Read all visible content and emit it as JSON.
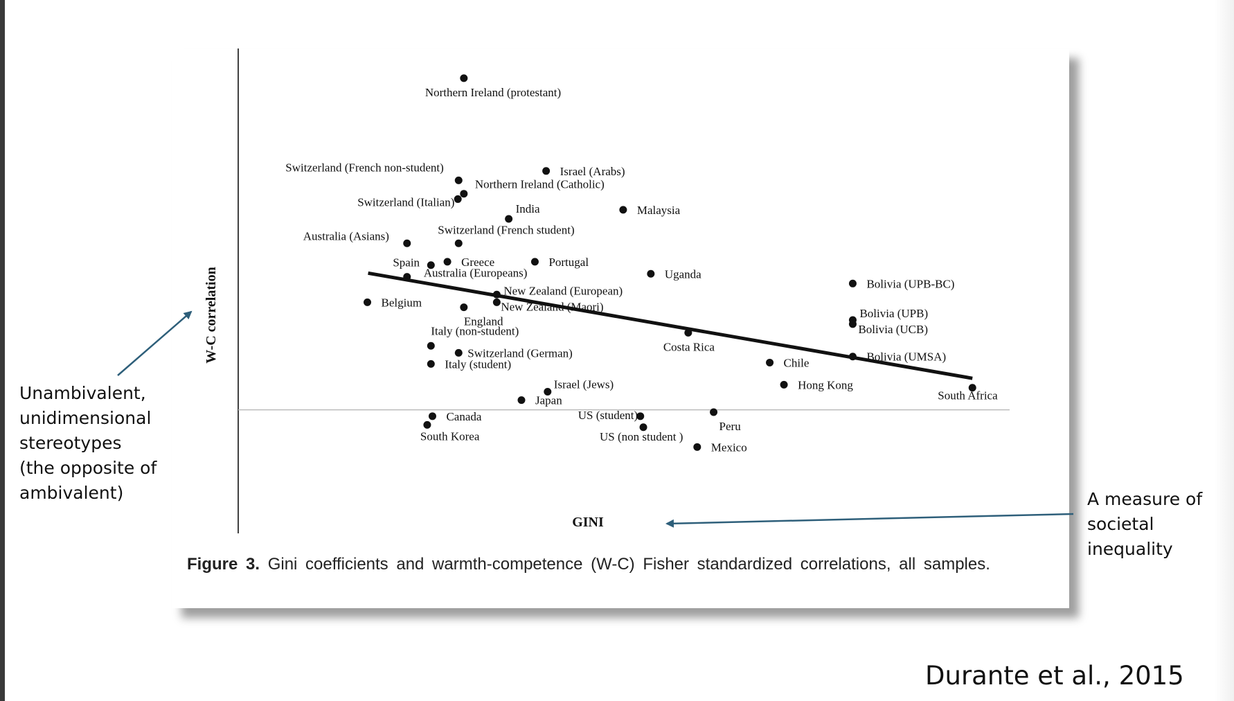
{
  "citation": "Durante et al., 2015",
  "annotations": {
    "left_note": [
      "Unambivalent,",
      "unidimensional",
      "stereotypes",
      "(the opposite of",
      "ambivalent)"
    ],
    "right_note": [
      "A measure of",
      "societal",
      "inequality"
    ]
  },
  "caption": {
    "label": "Figure 3.",
    "text": "Gini coefficients and warmth-competence (W-C) Fisher standardized correlations, all samples."
  },
  "chart_data": {
    "type": "scatter",
    "xlabel": "GINI",
    "ylabel": "W-C correlation",
    "xlim": [
      0,
      100
    ],
    "ylim": [
      -10,
      100
    ],
    "grid": false,
    "x_axis_at_y": 0,
    "colors": {
      "points": "#111111",
      "fit_line": "#111111",
      "axis": "#111111",
      "baseline": "#bbbbbb",
      "annotation_arrow": "#2e5f7a"
    },
    "points": [
      {
        "label": "Northern Ireland (protestant)",
        "x": 29.8,
        "y": 99.0
      },
      {
        "label": "Switzerland (French non-student)",
        "x": 29.1,
        "y": 68.5
      },
      {
        "label": "Israel (Arabs)",
        "x": 40.8,
        "y": 71.3
      },
      {
        "label": "Northern Ireland (Catholic)",
        "x": 29.8,
        "y": 64.5
      },
      {
        "label": "Switzerland (Italian)",
        "x": 29.0,
        "y": 62.9
      },
      {
        "label": "India",
        "x": 35.8,
        "y": 57.0
      },
      {
        "label": "Malaysia",
        "x": 51.1,
        "y": 59.7
      },
      {
        "label": "Australia (Asians)",
        "x": 22.2,
        "y": 49.7
      },
      {
        "label": "Switzerland (French student)",
        "x": 29.1,
        "y": 49.7
      },
      {
        "label": "Spain",
        "x": 25.4,
        "y": 43.2
      },
      {
        "label": "Greece",
        "x": 27.6,
        "y": 44.2
      },
      {
        "label": "Portugal",
        "x": 39.3,
        "y": 44.2
      },
      {
        "label": "Australia (Europeans)",
        "x": 22.2,
        "y": 39.7
      },
      {
        "label": "Uganda",
        "x": 54.8,
        "y": 40.6
      },
      {
        "label": "Bolivia (UPB-BC)",
        "x": 81.8,
        "y": 37.7
      },
      {
        "label": "New Zealand (European)",
        "x": 34.2,
        "y": 34.4
      },
      {
        "label": "New Zealand (Maori)",
        "x": 34.2,
        "y": 32.1
      },
      {
        "label": "Belgium",
        "x": 16.9,
        "y": 32.1
      },
      {
        "label": "England",
        "x": 29.8,
        "y": 30.6
      },
      {
        "label": "Bolivia (UPB)",
        "x": 81.8,
        "y": 26.8
      },
      {
        "label": "Bolivia (UCB)",
        "x": 81.8,
        "y": 25.6
      },
      {
        "label": "Costa Rica",
        "x": 59.8,
        "y": 23.0
      },
      {
        "label": "Italy (non-student)",
        "x": 25.4,
        "y": 19.1
      },
      {
        "label": "Switzerland (German)",
        "x": 29.1,
        "y": 17.0
      },
      {
        "label": "Italy (student)",
        "x": 25.4,
        "y": 13.7
      },
      {
        "label": "Chile",
        "x": 70.7,
        "y": 14.1
      },
      {
        "label": "Bolivia (UMSA)",
        "x": 81.8,
        "y": 15.9
      },
      {
        "label": "Hong Kong",
        "x": 72.6,
        "y": 7.5
      },
      {
        "label": "South Africa",
        "x": 97.8,
        "y": 6.6
      },
      {
        "label": "Israel (Jews)",
        "x": 41.0,
        "y": 5.4
      },
      {
        "label": "Japan",
        "x": 37.5,
        "y": 2.9
      },
      {
        "label": "Canada",
        "x": 25.6,
        "y": -1.9
      },
      {
        "label": "South Korea",
        "x": 24.9,
        "y": -4.5
      },
      {
        "label": "US (student)",
        "x": 53.4,
        "y": -1.9
      },
      {
        "label": "US (non student )",
        "x": 53.8,
        "y": -5.2
      },
      {
        "label": "Peru",
        "x": 63.2,
        "y": -0.7
      },
      {
        "label": "Mexico",
        "x": 61.0,
        "y": -11.1
      }
    ],
    "fit_line": {
      "x": [
        17.0,
        97.8
      ],
      "y": [
        40.8,
        9.4
      ]
    }
  }
}
